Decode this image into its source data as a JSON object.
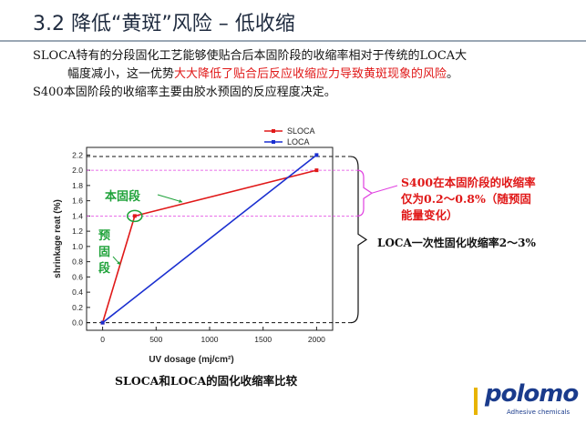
{
  "slide": {
    "title": "3.2 降低“黄斑”风险 – 低收缩",
    "para_part1": "SLOCA特有的分段固化工艺能够使贴合后本固阶段的收缩率相对于传统的LOCA大",
    "para_part2": "幅度减小，这一优势",
    "para_highlight": "大大降低了贴合后反应收缩应力导致黄斑现象的风险",
    "para_part3": "。",
    "para_line3": "S400本固阶段的收缩率主要由胶水预固的反应程度决定。"
  },
  "annotations": {
    "red_line1": "S400在本固阶段的收缩率",
    "red_line2": "仅为0.2～0.8%（随预固",
    "red_line3": "能量变化）",
    "black": "LOCA一次性固化收缩率2～3%",
    "green_main": "本固段",
    "green_pre1": "预",
    "green_pre2": "固",
    "green_pre3": "段"
  },
  "caption": "SLOCA和LOCA的固化收缩率比较",
  "logo": {
    "name": "polomo",
    "sub": "Adhesive chemicals"
  },
  "colors": {
    "sloca": "#e01818",
    "loca": "#1a2fd0",
    "accent_green": "#1fa23a",
    "pink_guides": "#e040e0"
  },
  "chart_data": {
    "type": "line",
    "xlabel": "UV dosage (mj/cm²)",
    "ylabel": "shrinkage reat (%)",
    "xlim": [
      -150,
      2150
    ],
    "ylim": [
      -0.1,
      2.3
    ],
    "xticks": [
      0,
      500,
      1000,
      1500,
      2000
    ],
    "yticks": [
      0.0,
      0.2,
      0.4,
      0.6,
      0.8,
      1.0,
      1.2,
      1.4,
      1.6,
      1.8,
      2.0,
      2.2
    ],
    "ytick_labels": [
      "0.0",
      "0.2",
      "0.4",
      "0.6",
      "0.8",
      "1.0",
      "1.2",
      "1.4",
      "1.6",
      "1.8",
      "2.0",
      "2.2"
    ],
    "legend_position": "top-right",
    "series": [
      {
        "name": "SLOCA",
        "color": "#e01818",
        "marker": "square",
        "x": [
          0,
          300,
          2000
        ],
        "y": [
          0.0,
          1.4,
          2.0
        ]
      },
      {
        "name": "LOCA",
        "color": "#1a2fd0",
        "marker": "square",
        "x": [
          0,
          2000
        ],
        "y": [
          0.0,
          2.2
        ]
      }
    ],
    "reference_lines": [
      2.18,
      0.0
    ],
    "pink_band": [
      1.4,
      2.0
    ]
  }
}
